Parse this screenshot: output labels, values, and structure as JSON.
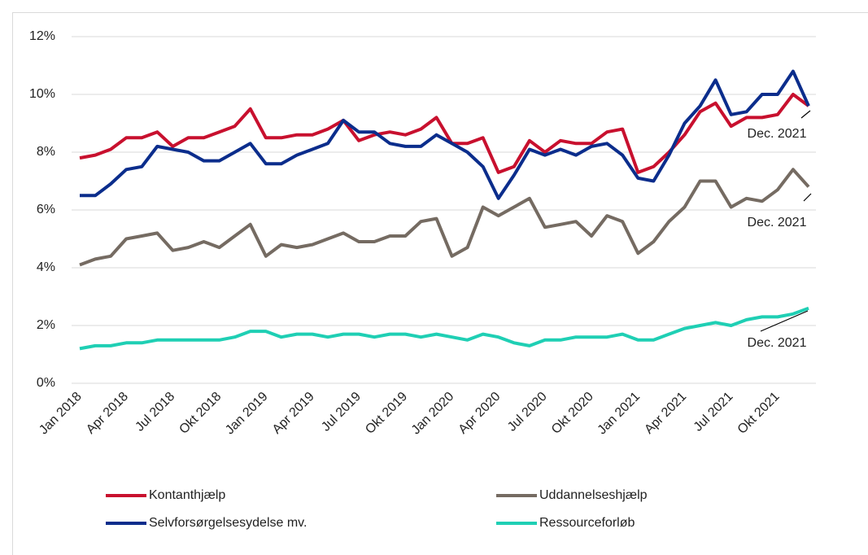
{
  "chart_data": {
    "type": "line",
    "categories": [
      "Jan 2018",
      null,
      null,
      "Apr 2018",
      null,
      null,
      "Jul 2018",
      null,
      null,
      "Okt 2018",
      null,
      null,
      "Jan 2019",
      null,
      null,
      "Apr 2019",
      null,
      null,
      "Jul 2019",
      null,
      null,
      "Okt 2019",
      null,
      null,
      "Jan 2020",
      null,
      null,
      "Apr 2020",
      null,
      null,
      "Jul 2020",
      null,
      null,
      "Okt 2020",
      null,
      null,
      "Jan 2021",
      null,
      null,
      "Apr 2021",
      null,
      null,
      "Jul 2021",
      null,
      null,
      "Okt 2021",
      null,
      null
    ],
    "series": [
      {
        "name": "Kontanthjælp",
        "color": "#c8102e",
        "values": [
          7.8,
          7.9,
          8.1,
          8.5,
          8.5,
          8.7,
          8.2,
          8.5,
          8.5,
          8.7,
          8.9,
          9.5,
          8.5,
          8.5,
          8.6,
          8.6,
          8.8,
          9.1,
          8.4,
          8.6,
          8.7,
          8.6,
          8.8,
          9.2,
          8.3,
          8.3,
          8.5,
          7.3,
          7.5,
          8.4,
          8.0,
          8.4,
          8.3,
          8.3,
          8.7,
          8.8,
          7.3,
          7.5,
          8.0,
          8.6,
          9.4,
          9.7,
          8.9,
          9.2,
          9.2,
          9.3,
          10.0,
          9.6
        ]
      },
      {
        "name": "Uddannelseshjælp",
        "color": "#756b62",
        "values": [
          4.1,
          4.3,
          4.4,
          5.0,
          5.1,
          5.2,
          4.6,
          4.7,
          4.9,
          4.7,
          5.1,
          5.5,
          4.4,
          4.8,
          4.7,
          4.8,
          5.0,
          5.2,
          4.9,
          4.9,
          5.1,
          5.1,
          5.6,
          5.7,
          4.4,
          4.7,
          6.1,
          5.8,
          6.1,
          6.4,
          5.4,
          5.5,
          5.6,
          5.1,
          5.8,
          5.6,
          4.5,
          4.9,
          5.6,
          6.1,
          7.0,
          7.0,
          6.1,
          6.4,
          6.3,
          6.7,
          7.4,
          6.8
        ]
      },
      {
        "name": "Selvforsørgelsesydelse mv.",
        "color": "#0b2d8c",
        "values": [
          6.5,
          6.5,
          6.9,
          7.4,
          7.5,
          8.2,
          8.1,
          8.0,
          7.7,
          7.7,
          8.0,
          8.3,
          7.6,
          7.6,
          7.9,
          8.1,
          8.3,
          9.1,
          8.7,
          8.7,
          8.3,
          8.2,
          8.2,
          8.6,
          8.3,
          8.0,
          7.5,
          6.4,
          7.2,
          8.1,
          7.9,
          8.1,
          7.9,
          8.2,
          8.3,
          7.9,
          7.1,
          7.0,
          7.9,
          9.0,
          9.6,
          10.5,
          9.3,
          9.4,
          10.0,
          10.0,
          10.8,
          9.6
        ]
      },
      {
        "name": "Ressourceforløb",
        "color": "#1fcfb4",
        "values": [
          1.2,
          1.3,
          1.3,
          1.4,
          1.4,
          1.5,
          1.5,
          1.5,
          1.5,
          1.5,
          1.6,
          1.8,
          1.8,
          1.6,
          1.7,
          1.7,
          1.6,
          1.7,
          1.7,
          1.6,
          1.7,
          1.7,
          1.6,
          1.7,
          1.6,
          1.5,
          1.7,
          1.6,
          1.4,
          1.3,
          1.5,
          1.5,
          1.6,
          1.6,
          1.6,
          1.7,
          1.5,
          1.5,
          1.7,
          1.9,
          2.0,
          2.1,
          2.0,
          2.2,
          2.3,
          2.3,
          2.4,
          2.6
        ]
      }
    ],
    "annotations": [
      "Dec. 2021",
      "Dec. 2021",
      "Dec. 2021"
    ],
    "ylim": [
      0,
      12
    ],
    "yticks": [
      {
        "value": 0,
        "label": "0%"
      },
      {
        "value": 2,
        "label": "2%"
      },
      {
        "value": 4,
        "label": "4%"
      },
      {
        "value": 6,
        "label": "6%"
      },
      {
        "value": 8,
        "label": "8%"
      },
      {
        "value": 10,
        "label": "10%"
      },
      {
        "value": 12,
        "label": "12%"
      }
    ],
    "grid": true
  }
}
